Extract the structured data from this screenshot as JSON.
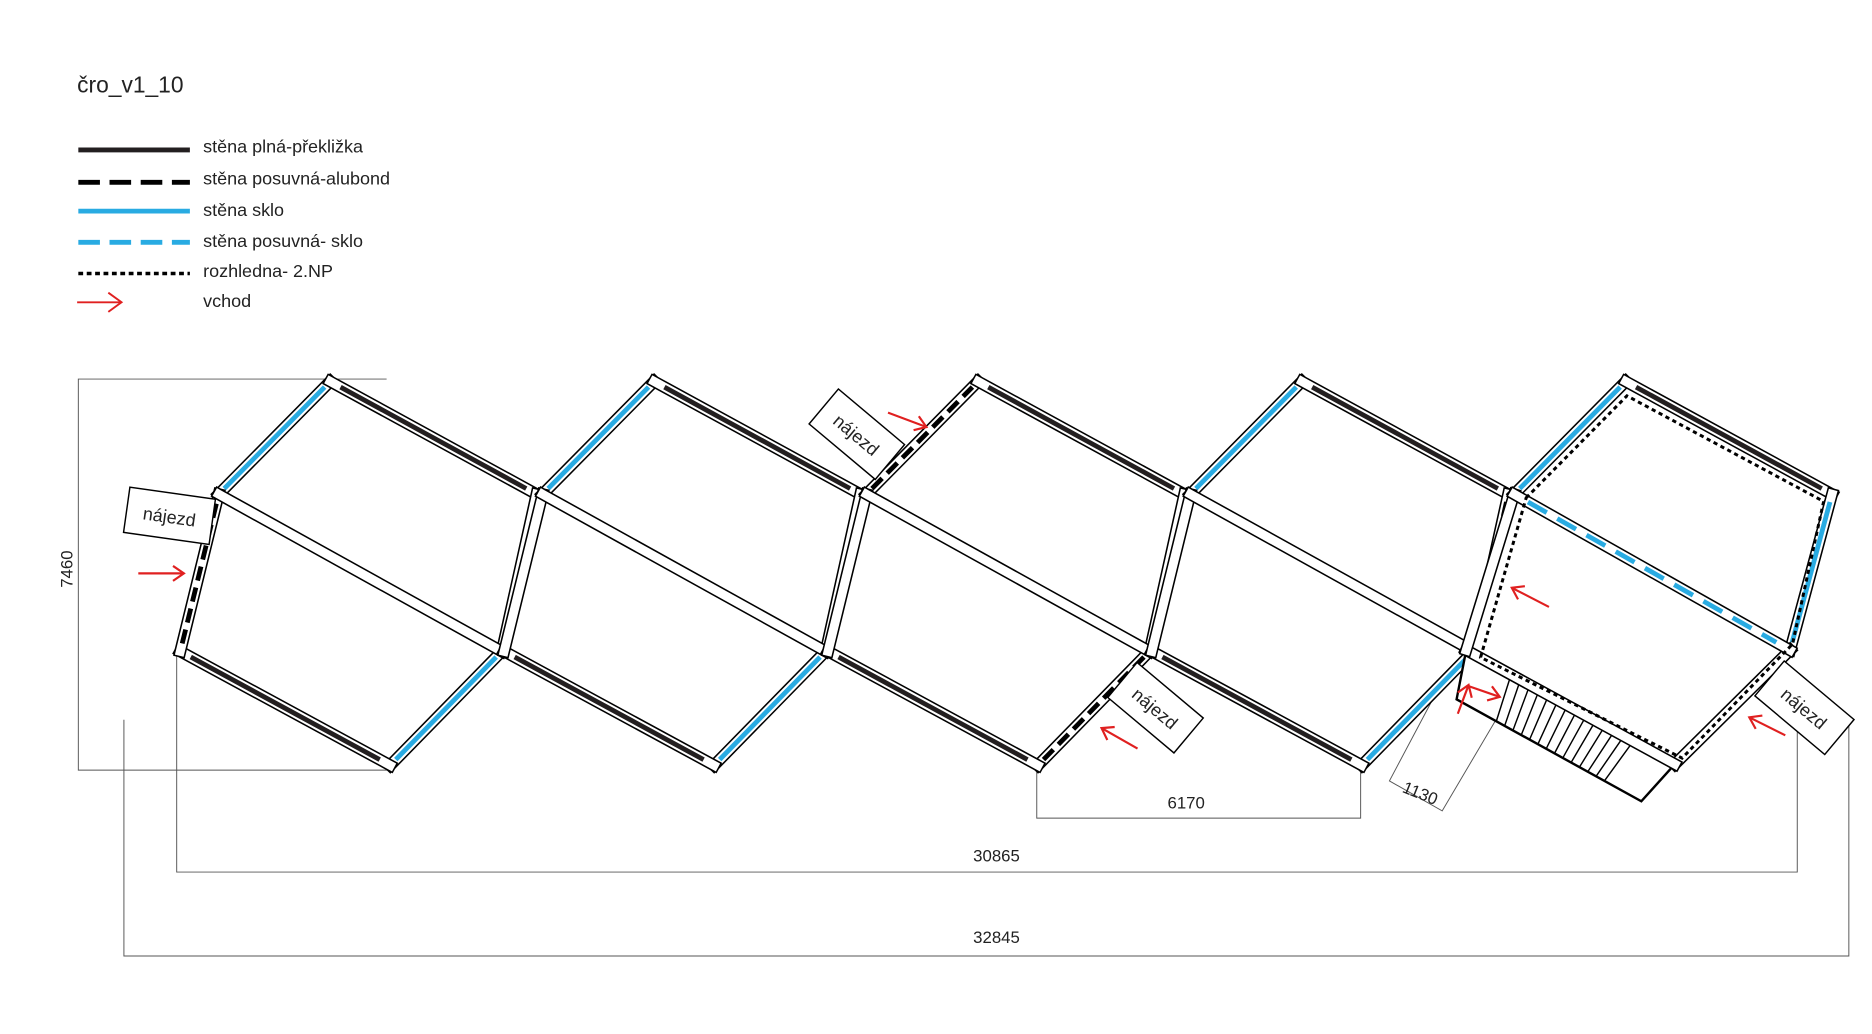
{
  "title": "čro_v1_10",
  "colors": {
    "wall": "#231f20",
    "glass": "#29abe2",
    "entrance": "#e02020",
    "dim": "#555555"
  },
  "legend": [
    {
      "style": "solid-black",
      "label": "stěna plná-překližka"
    },
    {
      "style": "dashed-black",
      "label": "stěna posuvná-alubond"
    },
    {
      "style": "solid-blue",
      "label": "stěna sklo"
    },
    {
      "style": "dashed-blue",
      "label": "stěna posuvná- sklo"
    },
    {
      "style": "dotted-black",
      "label": "rozhledna- 2.NP"
    },
    {
      "style": "red-arrow",
      "label": "vchod"
    }
  ],
  "labels": {
    "ramp": "nájezd"
  },
  "dimensions": {
    "height": "7460",
    "module": "6170",
    "stair": "1130",
    "inner_length": "30865",
    "total_length": "32845"
  },
  "modules": [
    {
      "top_left": "solid-blue",
      "top_right": "solid-black",
      "left": "dashed-black",
      "right": "none",
      "bottom_left": "solid-black",
      "bottom_right": "solid-blue"
    },
    {
      "top_left": "solid-blue",
      "top_right": "solid-black",
      "left": "none",
      "right": "none",
      "bottom_left": "solid-black",
      "bottom_right": "solid-blue"
    },
    {
      "top_left": "dashed-black",
      "top_right": "solid-black",
      "left": "none",
      "right": "none",
      "bottom_left": "solid-black",
      "bottom_right": "dashed-black"
    },
    {
      "top_left": "solid-blue",
      "top_right": "solid-black",
      "left": "none",
      "right": "dashed-black",
      "bottom_left": "solid-black",
      "bottom_right": "solid-blue"
    },
    {
      "top_left": "solid-blue",
      "top_right": "solid-black",
      "left": "none",
      "right": "solid-blue",
      "diagonal": "dashed-blue",
      "overlay": "dotted-black"
    }
  ]
}
